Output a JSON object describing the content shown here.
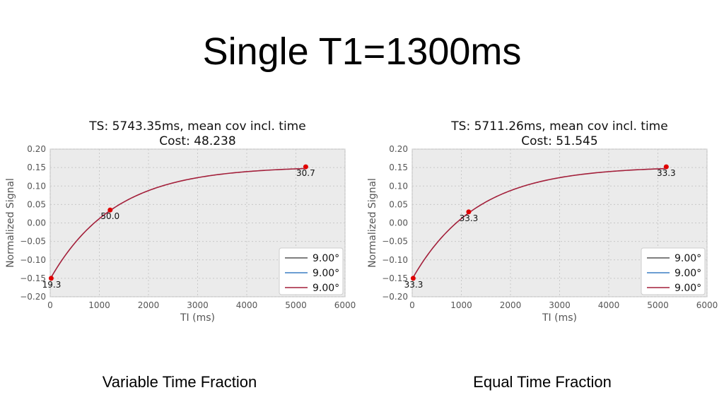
{
  "slide": {
    "title": "Single T1=1300ms",
    "captions": [
      "Variable Time Fraction",
      "Equal Time Fraction"
    ]
  },
  "colors": {
    "panel_bg": "#ebebeb",
    "curve": "#a31f3a",
    "marker": "#e00000",
    "legend_lines": [
      "#555555",
      "#3a7fc4",
      "#a31f3a"
    ]
  },
  "chart_data": [
    {
      "type": "line",
      "title": "TS: 5743.35ms, mean cov incl. time",
      "subtitle": "Cost: 48.238",
      "xlabel": "TI (ms)",
      "ylabel": "Normalized Signal",
      "xlim": [
        0,
        6000
      ],
      "ylim": [
        -0.2,
        0.2
      ],
      "xticks": [
        0,
        1000,
        2000,
        3000,
        4000,
        5000,
        6000
      ],
      "yticks": [
        -0.2,
        -0.15,
        -0.1,
        -0.05,
        0.0,
        0.05,
        0.1,
        0.15,
        0.2
      ],
      "ytick_labels": [
        "−0.20",
        "−0.15",
        "−0.10",
        "−0.05",
        "0.00",
        "0.05",
        "0.10",
        "0.15",
        "0.20"
      ],
      "grid": true,
      "curve": {
        "T1": 1300,
        "Mmin": -0.152,
        "Mmax": 0.153,
        "x_range": [
          0,
          5200
        ]
      },
      "points": [
        {
          "x": 20,
          "y": -0.15,
          "label": "19.3"
        },
        {
          "x": 1220,
          "y": 0.035,
          "label": "50.0"
        },
        {
          "x": 5200,
          "y": 0.152,
          "label": "30.7"
        }
      ],
      "legend": {
        "placement": "lower-right",
        "entries": [
          "9.00°",
          "9.00°",
          "9.00°"
        ]
      }
    },
    {
      "type": "line",
      "title": "TS: 5711.26ms, mean cov incl. time",
      "subtitle": "Cost: 51.545",
      "xlabel": "TI (ms)",
      "ylabel": "Normalized Signal",
      "xlim": [
        0,
        6000
      ],
      "ylim": [
        -0.2,
        0.2
      ],
      "xticks": [
        0,
        1000,
        2000,
        3000,
        4000,
        5000,
        6000
      ],
      "yticks": [
        -0.2,
        -0.15,
        -0.1,
        -0.05,
        0.0,
        0.05,
        0.1,
        0.15,
        0.2
      ],
      "ytick_labels": [
        "−0.20",
        "−0.15",
        "−0.10",
        "−0.05",
        "0.00",
        "0.05",
        "0.10",
        "0.15",
        "0.20"
      ],
      "grid": true,
      "curve": {
        "T1": 1300,
        "Mmin": -0.152,
        "Mmax": 0.153,
        "x_range": [
          0,
          5170
        ]
      },
      "points": [
        {
          "x": 20,
          "y": -0.15,
          "label": "33.3"
        },
        {
          "x": 1150,
          "y": 0.03,
          "label": "33.3"
        },
        {
          "x": 5170,
          "y": 0.152,
          "label": "33.3"
        }
      ],
      "legend": {
        "placement": "lower-right",
        "entries": [
          "9.00°",
          "9.00°",
          "9.00°"
        ]
      }
    }
  ]
}
